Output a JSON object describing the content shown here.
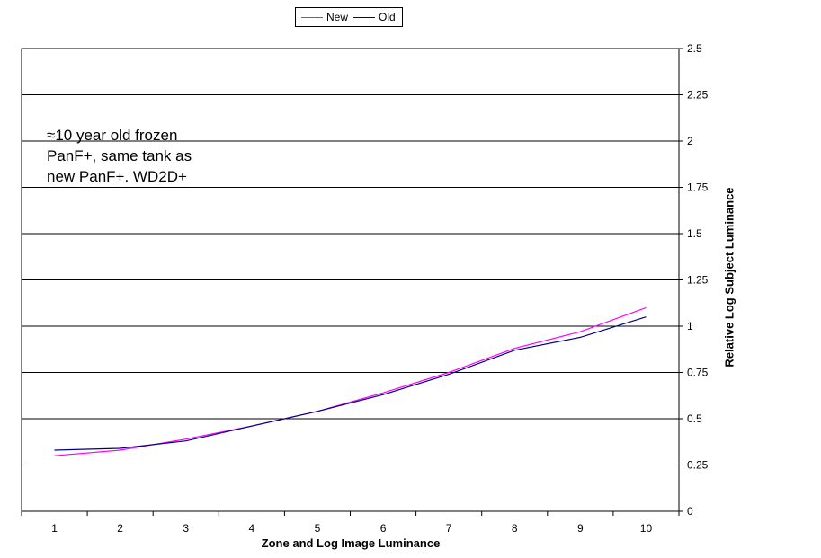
{
  "chart_data": {
    "type": "line",
    "x": [
      1,
      2,
      3,
      4,
      5,
      6,
      7,
      8,
      9,
      10
    ],
    "series": [
      {
        "name": "New",
        "color": "#ff00ff",
        "values": [
          0.3,
          0.33,
          0.39,
          0.46,
          0.54,
          0.64,
          0.75,
          0.88,
          0.97,
          1.1
        ]
      },
      {
        "name": "Old",
        "color": "#000080",
        "values": [
          0.33,
          0.34,
          0.38,
          0.46,
          0.54,
          0.63,
          0.74,
          0.87,
          0.94,
          1.05
        ]
      }
    ],
    "xlabel": "Zone and Log Image Luminance",
    "ylabel": "Relative Log Subject Luminance",
    "ylim": [
      0,
      2.5
    ],
    "yticks": [
      "0",
      "0.25",
      "0.5",
      "0.75",
      "1",
      "1.25",
      "1.5",
      "1.75",
      "2",
      "2.25",
      "2.5"
    ],
    "xticks": [
      "1",
      "2",
      "3",
      "4",
      "5",
      "6",
      "7",
      "8",
      "9",
      "10"
    ],
    "grid": true,
    "legend_position": "top",
    "annotation": "≈10 year old frozen\nPanF+, same tank as\nnew PanF+.  WD2D+"
  }
}
